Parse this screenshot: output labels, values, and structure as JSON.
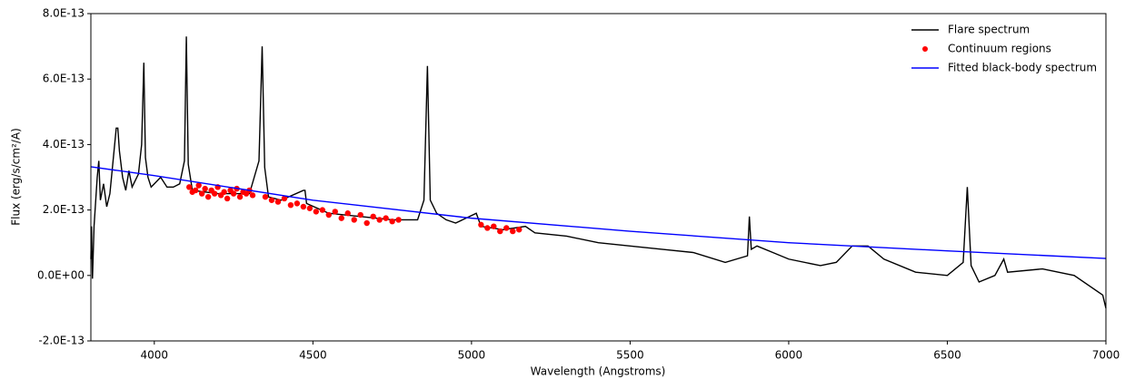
{
  "chart_data": {
    "type": "line",
    "xlabel": "Wavelength (Angstroms)",
    "ylabel": "Flux (erg/s/cm²/A)",
    "xlim": [
      3800,
      7000
    ],
    "ylim": [
      -2e-13,
      8e-13
    ],
    "xticks": [
      4000,
      4500,
      5000,
      5500,
      6000,
      6500,
      7000
    ],
    "yticks": [
      {
        "value": -2e-13,
        "label": "-2.0E-13"
      },
      {
        "value": 0,
        "label": "0.0E+00"
      },
      {
        "value": 2e-13,
        "label": "2.0E-13"
      },
      {
        "value": 4e-13,
        "label": "4.0E-13"
      },
      {
        "value": 6e-13,
        "label": "6.0E-13"
      },
      {
        "value": 8e-13,
        "label": "8.0E-13"
      }
    ],
    "grid": false,
    "legend": "upper right",
    "series": [
      {
        "name": "Flare spectrum",
        "color": "#000000",
        "style": "line",
        "x": [
          3800,
          3802,
          3805,
          3810,
          3820,
          3825,
          3830,
          3840,
          3850,
          3860,
          3870,
          3880,
          3885,
          3890,
          3900,
          3910,
          3920,
          3930,
          3940,
          3950,
          3960,
          3967,
          3972,
          3980,
          3990,
          4000,
          4020,
          4040,
          4060,
          4080,
          4095,
          4101,
          4107,
          4120,
          4200,
          4300,
          4330,
          4340,
          4348,
          4360,
          4400,
          4470,
          4475,
          4480,
          4550,
          4650,
          4750,
          4830,
          4850,
          4861,
          4870,
          4890,
          4920,
          4950,
          5015,
          5030,
          5100,
          5170,
          5200,
          5300,
          5400,
          5500,
          5600,
          5700,
          5800,
          5870,
          5876,
          5882,
          5900,
          5950,
          6000,
          6100,
          6150,
          6200,
          6250,
          6300,
          6400,
          6500,
          6550,
          6563,
          6575,
          6600,
          6650,
          6678,
          6690,
          6800,
          6900,
          6990,
          7000
        ],
        "values": [
          5e-14,
          1.5e-13,
          -1e-14,
          1.5e-13,
          3e-13,
          3.5e-13,
          2.3e-13,
          2.8e-13,
          2.1e-13,
          2.5e-13,
          3.5e-13,
          4.5e-13,
          4.5e-13,
          3.8e-13,
          3e-13,
          2.6e-13,
          3.2e-13,
          2.7e-13,
          2.9e-13,
          3.1e-13,
          4e-13,
          6.5e-13,
          3.6e-13,
          3e-13,
          2.7e-13,
          2.8e-13,
          3e-13,
          2.7e-13,
          2.7e-13,
          2.8e-13,
          3.5e-13,
          7.3e-13,
          3.4e-13,
          2.6e-13,
          2.5e-13,
          2.5e-13,
          3.5e-13,
          7e-13,
          3.3e-13,
          2.4e-13,
          2.3e-13,
          2.6e-13,
          2.6e-13,
          2.2e-13,
          1.9e-13,
          1.8e-13,
          1.7e-13,
          1.7e-13,
          2.3e-13,
          6.4e-13,
          2.3e-13,
          1.9e-13,
          1.7e-13,
          1.6e-13,
          1.9e-13,
          1.5e-13,
          1.4e-13,
          1.5e-13,
          1.3e-13,
          1.2e-13,
          1e-13,
          9e-14,
          8e-14,
          7e-14,
          4e-14,
          6e-14,
          1.8e-13,
          8e-14,
          9e-14,
          7e-14,
          5e-14,
          3e-14,
          4e-14,
          9e-14,
          9e-14,
          5e-14,
          1e-14,
          0,
          4e-14,
          2.7e-13,
          3e-14,
          -2e-14,
          0,
          5e-14,
          1e-14,
          2e-14,
          0,
          -6e-14,
          -1e-13
        ]
      },
      {
        "name": "Continuum regions",
        "color": "#ff0000",
        "style": "points",
        "x": [
          4110,
          4120,
          4130,
          4140,
          4150,
          4160,
          4170,
          4180,
          4190,
          4200,
          4210,
          4220,
          4230,
          4240,
          4250,
          4260,
          4270,
          4280,
          4290,
          4300,
          4310,
          4350,
          4370,
          4390,
          4410,
          4430,
          4450,
          4470,
          4490,
          4510,
          4530,
          4550,
          4570,
          4590,
          4610,
          4630,
          4650,
          4670,
          4690,
          4710,
          4730,
          4750,
          4770,
          5030,
          5050,
          5070,
          5090,
          5110,
          5130,
          5150
        ],
        "values": [
          2.7e-13,
          2.55e-13,
          2.6e-13,
          2.75e-13,
          2.5e-13,
          2.65e-13,
          2.4e-13,
          2.6e-13,
          2.5e-13,
          2.7e-13,
          2.45e-13,
          2.55e-13,
          2.35e-13,
          2.6e-13,
          2.5e-13,
          2.65e-13,
          2.4e-13,
          2.55e-13,
          2.5e-13,
          2.6e-13,
          2.45e-13,
          2.4e-13,
          2.3e-13,
          2.25e-13,
          2.35e-13,
          2.15e-13,
          2.2e-13,
          2.1e-13,
          2.05e-13,
          1.95e-13,
          2e-13,
          1.85e-13,
          1.95e-13,
          1.75e-13,
          1.9e-13,
          1.7e-13,
          1.85e-13,
          1.6e-13,
          1.8e-13,
          1.7e-13,
          1.75e-13,
          1.65e-13,
          1.7e-13,
          1.55e-13,
          1.45e-13,
          1.5e-13,
          1.35e-13,
          1.45e-13,
          1.35e-13,
          1.4e-13
        ]
      },
      {
        "name": "Fitted black-body spectrum",
        "color": "#0000ff",
        "style": "line",
        "x": [
          3800,
          4000,
          4500,
          5000,
          5500,
          6000,
          6500,
          7000
        ],
        "values": [
          3.32e-13,
          3.05e-13,
          2.3e-13,
          1.75e-13,
          1.35e-13,
          1e-13,
          7.5e-14,
          5.2e-14
        ]
      }
    ]
  }
}
